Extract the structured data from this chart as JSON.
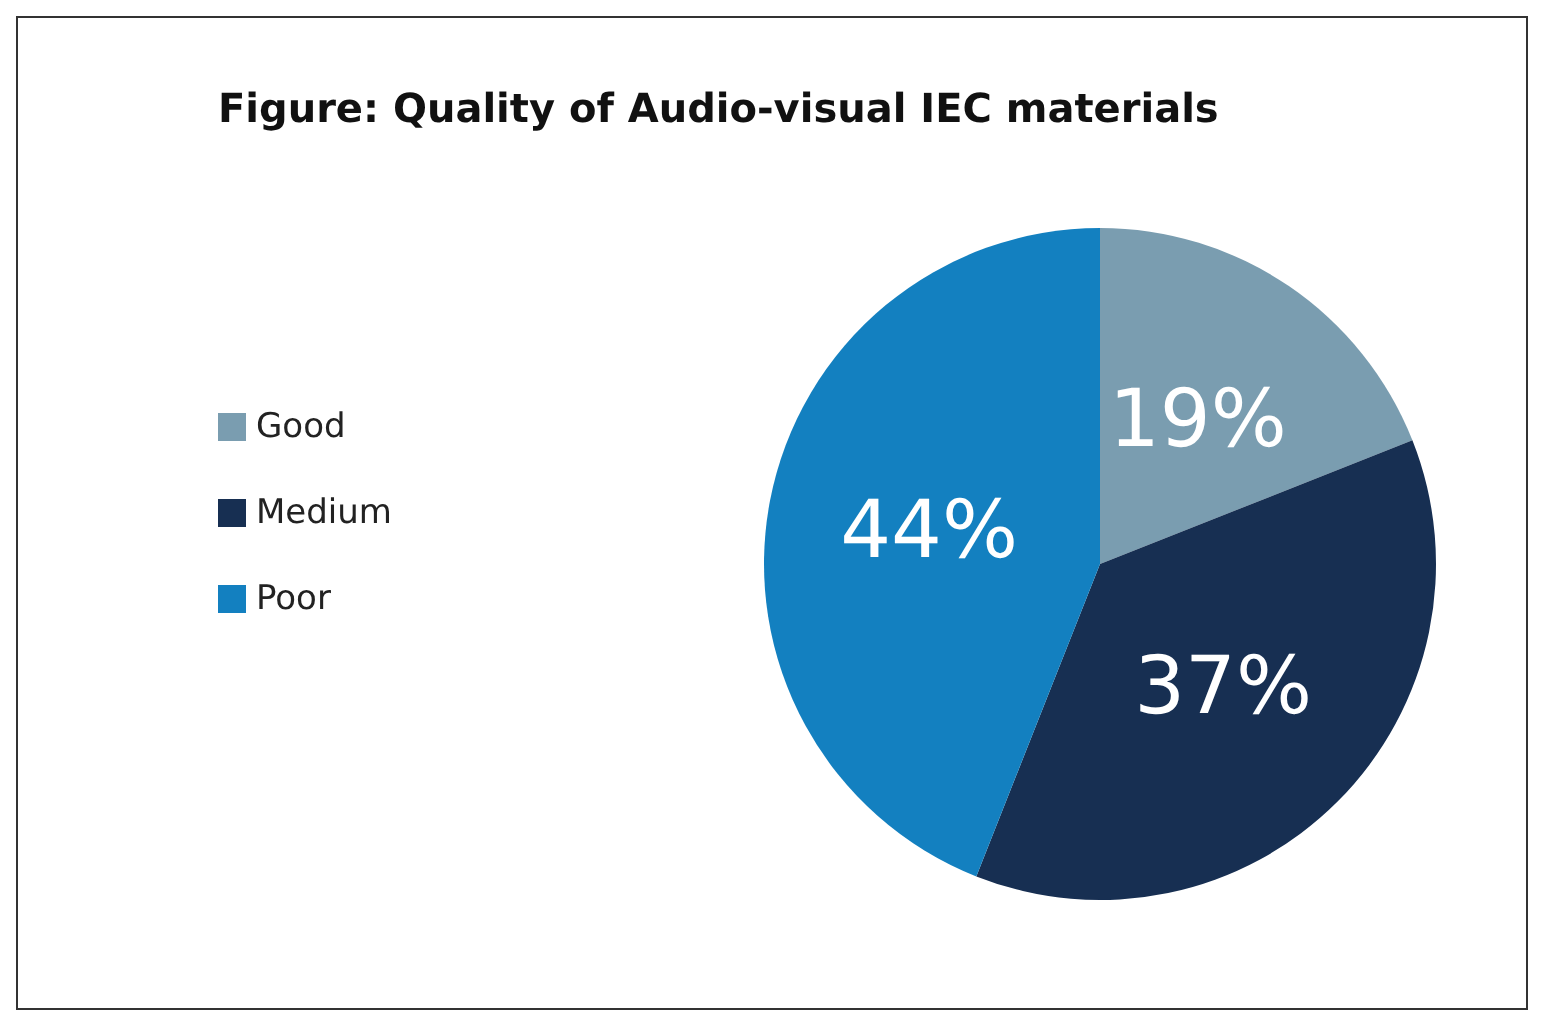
{
  "chart_data": {
    "type": "pie",
    "title": "Figure: Quality of Audio-visual IEC materials",
    "categories": [
      "Good",
      "Medium",
      "Poor"
    ],
    "values": [
      19,
      37,
      44
    ],
    "colors": [
      "#7a9db0",
      "#172f52",
      "#1380c0"
    ],
    "value_labels": [
      "19%",
      "37%",
      "44%"
    ],
    "legend": "left"
  }
}
